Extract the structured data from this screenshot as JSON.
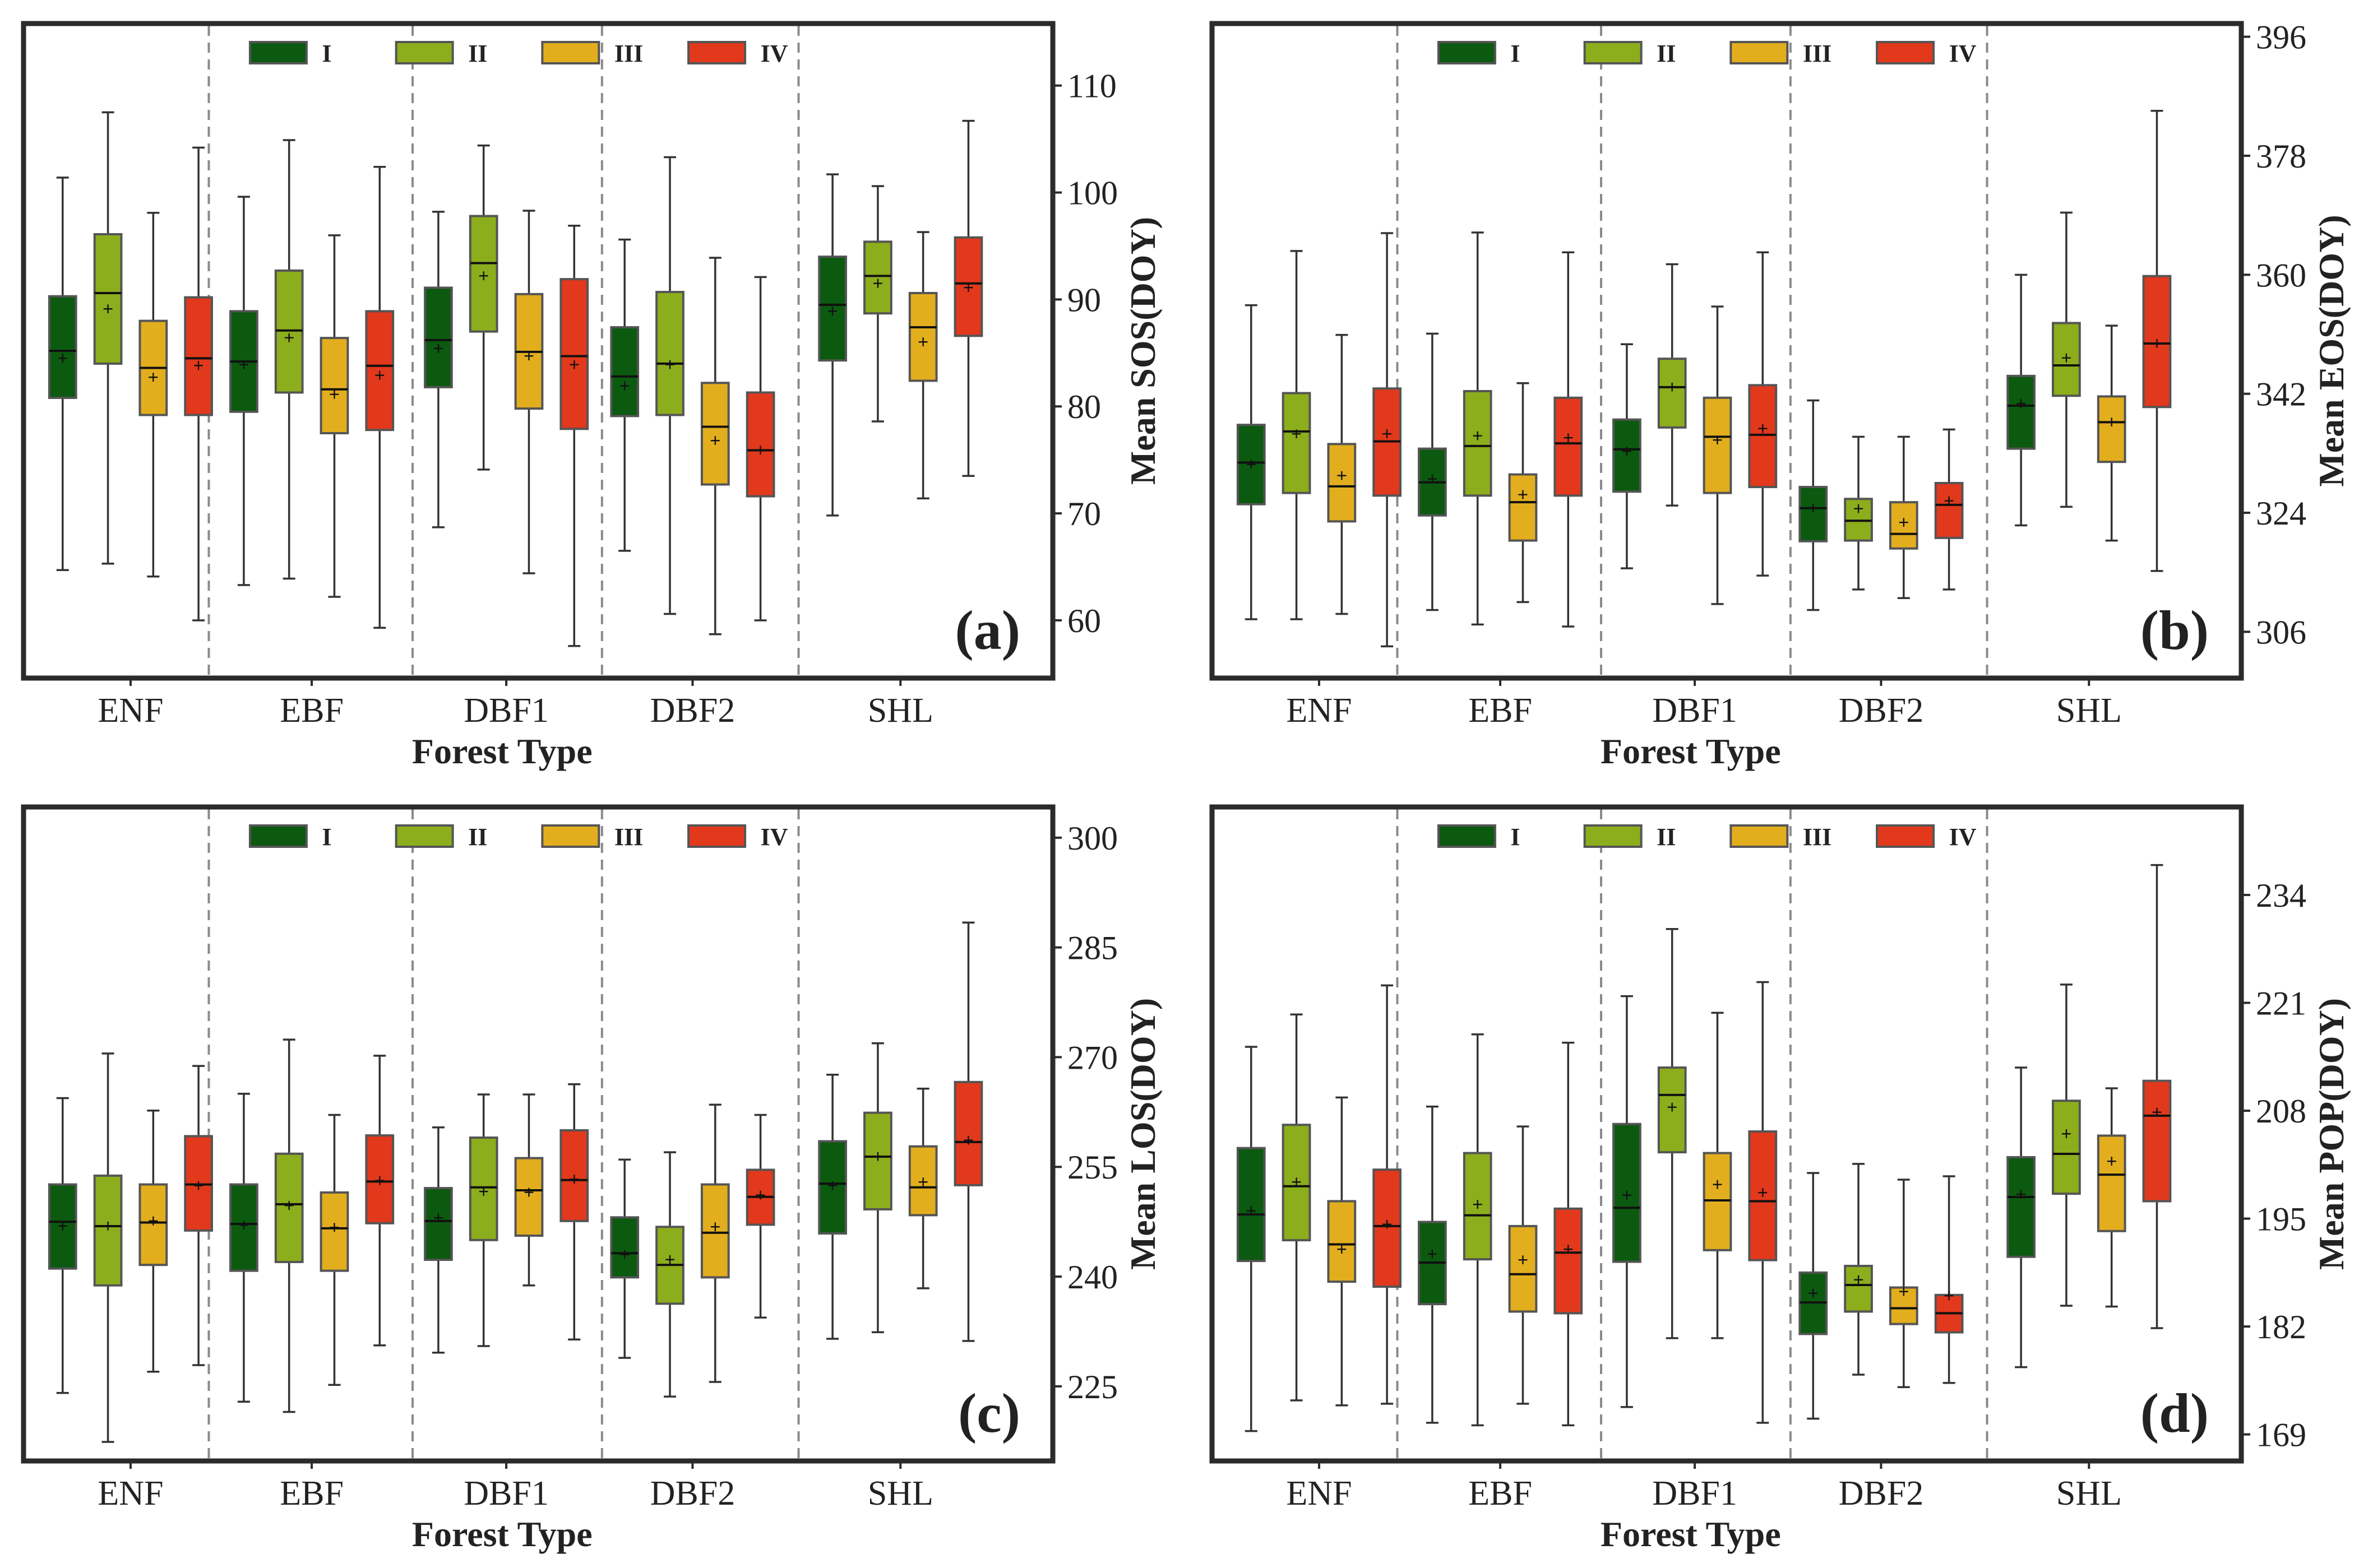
{
  "figure": {
    "group_colors": [
      "#0b5a10",
      "#8cae1c",
      "#e3ae1e",
      "#e2381c"
    ],
    "group_names": [
      "I",
      "II",
      "III",
      "IV"
    ],
    "mean_marker": "+"
  },
  "chart_data": [
    {
      "panel": "(a)",
      "type": "box",
      "xlabel": "Forest Type",
      "ylabel": "Mean SOS(DOY)",
      "ylim": [
        54.6,
        115.8
      ],
      "yticks": [
        60,
        70,
        80,
        90,
        100,
        110
      ],
      "categories": [
        "ENF",
        "EBF",
        "DBF1",
        "DBF2",
        "SHL"
      ],
      "series": [
        {
          "name": "I",
          "boxes": [
            {
              "min": 64.7,
              "q1": 80.8,
              "median": 85.2,
              "q3": 90.3,
              "max": 101.4,
              "mean": 84.5
            },
            {
              "min": 63.3,
              "q1": 79.5,
              "median": 84.2,
              "q3": 88.9,
              "max": 99.6,
              "mean": 83.9
            },
            {
              "min": 68.7,
              "q1": 81.8,
              "median": 86.2,
              "q3": 91.1,
              "max": 98.2,
              "mean": 85.4
            },
            {
              "min": 66.5,
              "q1": 79.1,
              "median": 82.8,
              "q3": 87.4,
              "max": 95.6,
              "mean": 81.9
            },
            {
              "min": 69.8,
              "q1": 84.3,
              "median": 89.5,
              "q3": 94.0,
              "max": 101.7,
              "mean": 88.9
            }
          ]
        },
        {
          "name": "II",
          "boxes": [
            {
              "min": 65.3,
              "q1": 84.0,
              "median": 90.6,
              "q3": 96.1,
              "max": 107.5,
              "mean": 89.1
            },
            {
              "min": 63.9,
              "q1": 81.3,
              "median": 87.1,
              "q3": 92.7,
              "max": 104.9,
              "mean": 86.4
            },
            {
              "min": 74.1,
              "q1": 87.0,
              "median": 93.4,
              "q3": 97.8,
              "max": 104.4,
              "mean": 92.2
            },
            {
              "min": 60.6,
              "q1": 79.2,
              "median": 84.0,
              "q3": 90.7,
              "max": 103.3,
              "mean": 83.9
            },
            {
              "min": 78.6,
              "q1": 88.7,
              "median": 92.2,
              "q3": 95.4,
              "max": 100.6,
              "mean": 91.5
            }
          ]
        },
        {
          "name": "III",
          "boxes": [
            {
              "min": 64.1,
              "q1": 79.2,
              "median": 83.6,
              "q3": 88.0,
              "max": 98.1,
              "mean": 82.7
            },
            {
              "min": 62.2,
              "q1": 77.5,
              "median": 81.6,
              "q3": 86.4,
              "max": 96.0,
              "mean": 81.1
            },
            {
              "min": 64.4,
              "q1": 79.8,
              "median": 85.1,
              "q3": 90.5,
              "max": 98.3,
              "mean": 84.7
            },
            {
              "min": 58.7,
              "q1": 72.7,
              "median": 78.1,
              "q3": 82.2,
              "max": 93.9,
              "mean": 76.8
            },
            {
              "min": 71.4,
              "q1": 82.4,
              "median": 87.4,
              "q3": 90.6,
              "max": 96.3,
              "mean": 86.0
            }
          ]
        },
        {
          "name": "IV",
          "boxes": [
            {
              "min": 60.0,
              "q1": 79.2,
              "median": 84.5,
              "q3": 90.2,
              "max": 104.2,
              "mean": 83.8
            },
            {
              "min": 59.3,
              "q1": 77.8,
              "median": 83.8,
              "q3": 88.9,
              "max": 102.4,
              "mean": 82.9
            },
            {
              "min": 57.6,
              "q1": 77.9,
              "median": 84.7,
              "q3": 91.9,
              "max": 96.9,
              "mean": 83.9
            },
            {
              "min": 60.0,
              "q1": 71.6,
              "median": 75.9,
              "q3": 81.3,
              "max": 92.1,
              "mean": 75.9
            },
            {
              "min": 73.5,
              "q1": 86.6,
              "median": 91.5,
              "q3": 95.8,
              "max": 106.7,
              "mean": 91.1
            }
          ]
        }
      ]
    },
    {
      "panel": "(b)",
      "type": "box",
      "xlabel": "Forest Type",
      "ylabel": "Mean EOS(DOY)",
      "ylim": [
        299.0,
        398.0
      ],
      "yticks": [
        306,
        324,
        342,
        360,
        378,
        396
      ],
      "categories": [
        "ENF",
        "EBF",
        "DBF1",
        "DBF2",
        "SHL"
      ],
      "series": [
        {
          "name": "I",
          "boxes": [
            {
              "min": 307.9,
              "q1": 325.3,
              "median": 331.6,
              "q3": 337.3,
              "max": 355.4,
              "mean": 331.3
            },
            {
              "min": 309.3,
              "q1": 323.6,
              "median": 328.6,
              "q3": 333.7,
              "max": 351.1,
              "mean": 329.1
            },
            {
              "min": 315.6,
              "q1": 327.2,
              "median": 333.6,
              "q3": 338.1,
              "max": 349.5,
              "mean": 333.3
            },
            {
              "min": 309.3,
              "q1": 319.7,
              "median": 324.7,
              "q3": 327.9,
              "max": 341.0,
              "mean": 324.7
            },
            {
              "min": 322.1,
              "q1": 333.7,
              "median": 340.2,
              "q3": 344.7,
              "max": 360.0,
              "mean": 340.5
            }
          ]
        },
        {
          "name": "II",
          "boxes": [
            {
              "min": 307.9,
              "q1": 327.0,
              "median": 336.3,
              "q3": 342.1,
              "max": 363.6,
              "mean": 335.9
            },
            {
              "min": 307.1,
              "q1": 326.6,
              "median": 334.1,
              "q3": 342.4,
              "max": 366.4,
              "mean": 335.6
            },
            {
              "min": 325.1,
              "q1": 336.9,
              "median": 343.0,
              "q3": 347.3,
              "max": 361.6,
              "mean": 343.0
            },
            {
              "min": 312.4,
              "q1": 319.8,
              "median": 322.8,
              "q3": 326.1,
              "max": 335.5,
              "mean": 324.6
            },
            {
              "min": 324.9,
              "q1": 341.7,
              "median": 346.3,
              "q3": 352.7,
              "max": 369.4,
              "mean": 347.4
            }
          ]
        },
        {
          "name": "III",
          "boxes": [
            {
              "min": 308.7,
              "q1": 322.7,
              "median": 328.0,
              "q3": 334.4,
              "max": 350.9,
              "mean": 329.6
            },
            {
              "min": 310.5,
              "q1": 319.8,
              "median": 325.6,
              "q3": 329.8,
              "max": 343.6,
              "mean": 326.7
            },
            {
              "min": 310.2,
              "q1": 327.0,
              "median": 335.5,
              "q3": 341.4,
              "max": 355.2,
              "mean": 335.0
            },
            {
              "min": 311.1,
              "q1": 318.6,
              "median": 320.8,
              "q3": 325.6,
              "max": 335.5,
              "mean": 322.5
            },
            {
              "min": 319.8,
              "q1": 331.7,
              "median": 337.7,
              "q3": 341.6,
              "max": 352.3,
              "mean": 337.7
            }
          ]
        },
        {
          "name": "IV",
          "boxes": [
            {
              "min": 303.8,
              "q1": 326.6,
              "median": 334.8,
              "q3": 342.8,
              "max": 366.3,
              "mean": 335.9
            },
            {
              "min": 306.8,
              "q1": 326.6,
              "median": 334.5,
              "q3": 341.4,
              "max": 363.4,
              "mean": 335.3
            },
            {
              "min": 314.5,
              "q1": 327.9,
              "median": 335.8,
              "q3": 343.3,
              "max": 363.4,
              "mean": 336.7
            },
            {
              "min": 312.4,
              "q1": 320.2,
              "median": 325.2,
              "q3": 328.5,
              "max": 336.6,
              "mean": 325.8
            },
            {
              "min": 315.2,
              "q1": 340.0,
              "median": 349.6,
              "q3": 359.8,
              "max": 384.8,
              "mean": 349.6
            }
          ]
        }
      ]
    },
    {
      "panel": "(c)",
      "type": "box",
      "xlabel": "Forest Type",
      "ylabel": "Mean LOS(DOY)",
      "ylim": [
        214.8,
        304.2
      ],
      "yticks": [
        225,
        240,
        255,
        270,
        285,
        300
      ],
      "categories": [
        "ENF",
        "EBF",
        "DBF1",
        "DBF2",
        "SHL"
      ],
      "series": [
        {
          "name": "I",
          "boxes": [
            {
              "min": 224.1,
              "q1": 241.1,
              "median": 247.5,
              "q3": 252.6,
              "max": 264.4,
              "mean": 246.9
            },
            {
              "min": 222.9,
              "q1": 240.8,
              "median": 247.2,
              "q3": 252.6,
              "max": 265.0,
              "mean": 247.0
            },
            {
              "min": 229.6,
              "q1": 242.3,
              "median": 247.6,
              "q3": 252.1,
              "max": 260.4,
              "mean": 248.0
            },
            {
              "min": 228.9,
              "q1": 239.9,
              "median": 243.2,
              "q3": 248.1,
              "max": 256.0,
              "mean": 243.0
            },
            {
              "min": 231.5,
              "q1": 245.9,
              "median": 252.7,
              "q3": 258.5,
              "max": 267.6,
              "mean": 252.4
            }
          ]
        },
        {
          "name": "II",
          "boxes": [
            {
              "min": 217.4,
              "q1": 238.8,
              "median": 246.9,
              "q3": 253.8,
              "max": 270.5,
              "mean": 246.9
            },
            {
              "min": 221.5,
              "q1": 242.0,
              "median": 249.9,
              "q3": 256.8,
              "max": 272.4,
              "mean": 249.7
            },
            {
              "min": 230.5,
              "q1": 245.0,
              "median": 252.2,
              "q3": 259.0,
              "max": 264.9,
              "mean": 251.6
            },
            {
              "min": 223.6,
              "q1": 236.3,
              "median": 241.6,
              "q3": 246.8,
              "max": 257.0,
              "mean": 242.3
            },
            {
              "min": 232.4,
              "q1": 249.2,
              "median": 256.4,
              "q3": 262.4,
              "max": 271.9,
              "mean": 256.4
            }
          ]
        },
        {
          "name": "III",
          "boxes": [
            {
              "min": 227.0,
              "q1": 241.6,
              "median": 247.4,
              "q3": 252.6,
              "max": 262.7,
              "mean": 247.6
            },
            {
              "min": 225.2,
              "q1": 240.8,
              "median": 246.6,
              "q3": 251.5,
              "max": 262.1,
              "mean": 246.7
            },
            {
              "min": 238.8,
              "q1": 245.6,
              "median": 251.8,
              "q3": 256.2,
              "max": 264.9,
              "mean": 251.5
            },
            {
              "min": 225.6,
              "q1": 239.9,
              "median": 246.0,
              "q3": 252.6,
              "max": 263.5,
              "mean": 246.8
            },
            {
              "min": 238.4,
              "q1": 248.4,
              "median": 252.2,
              "q3": 257.8,
              "max": 265.7,
              "mean": 252.9
            }
          ]
        },
        {
          "name": "IV",
          "boxes": [
            {
              "min": 227.9,
              "q1": 246.3,
              "median": 252.6,
              "q3": 259.2,
              "max": 268.8,
              "mean": 252.4
            },
            {
              "min": 230.6,
              "q1": 247.3,
              "median": 253.0,
              "q3": 259.3,
              "max": 270.2,
              "mean": 253.1
            },
            {
              "min": 231.4,
              "q1": 247.6,
              "median": 253.2,
              "q3": 260.0,
              "max": 266.3,
              "mean": 253.3
            },
            {
              "min": 234.4,
              "q1": 247.1,
              "median": 250.9,
              "q3": 254.6,
              "max": 262.1,
              "mean": 251.1
            },
            {
              "min": 231.2,
              "q1": 252.5,
              "median": 258.4,
              "q3": 266.6,
              "max": 288.4,
              "mean": 258.6
            }
          ]
        }
      ]
    },
    {
      "panel": "(d)",
      "type": "box",
      "xlabel": "Forest Type",
      "ylabel": "Mean POP(DOY)",
      "ylim": [
        165.8,
        244.6
      ],
      "yticks": [
        169,
        182,
        195,
        208,
        221,
        234
      ],
      "categories": [
        "ENF",
        "EBF",
        "DBF1",
        "DBF2",
        "SHL"
      ],
      "series": [
        {
          "name": "I",
          "boxes": [
            {
              "min": 169.4,
              "q1": 189.9,
              "median": 195.5,
              "q3": 203.5,
              "max": 215.7,
              "mean": 195.9
            },
            {
              "min": 170.4,
              "q1": 184.7,
              "median": 189.7,
              "q3": 194.6,
              "max": 208.5,
              "mean": 190.7
            },
            {
              "min": 172.3,
              "q1": 189.8,
              "median": 196.3,
              "q3": 206.4,
              "max": 221.8,
              "mean": 197.8
            },
            {
              "min": 170.9,
              "q1": 181.1,
              "median": 184.9,
              "q3": 188.5,
              "max": 200.5,
              "mean": 186.0
            },
            {
              "min": 177.1,
              "q1": 190.4,
              "median": 197.6,
              "q3": 202.4,
              "max": 213.2,
              "mean": 197.9
            }
          ]
        },
        {
          "name": "II",
          "boxes": [
            {
              "min": 173.1,
              "q1": 192.4,
              "median": 198.9,
              "q3": 206.3,
              "max": 219.6,
              "mean": 199.4
            },
            {
              "min": 170.1,
              "q1": 190.1,
              "median": 195.4,
              "q3": 202.9,
              "max": 217.2,
              "mean": 196.7
            },
            {
              "min": 180.6,
              "q1": 203.0,
              "median": 209.9,
              "q3": 213.2,
              "max": 229.9,
              "mean": 208.4
            },
            {
              "min": 176.2,
              "q1": 183.8,
              "median": 187.0,
              "q3": 189.3,
              "max": 201.6,
              "mean": 187.6
            },
            {
              "min": 184.5,
              "q1": 198.0,
              "median": 202.8,
              "q3": 209.2,
              "max": 223.2,
              "mean": 205.2
            }
          ]
        },
        {
          "name": "III",
          "boxes": [
            {
              "min": 172.5,
              "q1": 187.4,
              "median": 191.9,
              "q3": 197.1,
              "max": 209.6,
              "mean": 191.3
            },
            {
              "min": 172.7,
              "q1": 183.8,
              "median": 188.3,
              "q3": 194.1,
              "max": 206.1,
              "mean": 190.0
            },
            {
              "min": 180.6,
              "q1": 191.2,
              "median": 197.2,
              "q3": 202.9,
              "max": 219.8,
              "mean": 199.1
            },
            {
              "min": 174.7,
              "q1": 182.3,
              "median": 184.2,
              "q3": 186.7,
              "max": 199.7,
              "mean": 186.2
            },
            {
              "min": 184.4,
              "q1": 193.5,
              "median": 200.3,
              "q3": 205.0,
              "max": 210.7,
              "mean": 201.9
            }
          ]
        },
        {
          "name": "IV",
          "boxes": [
            {
              "min": 172.7,
              "q1": 186.8,
              "median": 194.1,
              "q3": 200.9,
              "max": 223.1,
              "mean": 194.3
            },
            {
              "min": 170.1,
              "q1": 183.6,
              "median": 190.9,
              "q3": 196.2,
              "max": 216.2,
              "mean": 191.3
            },
            {
              "min": 170.4,
              "q1": 190.0,
              "median": 197.1,
              "q3": 205.5,
              "max": 223.5,
              "mean": 198.1
            },
            {
              "min": 175.2,
              "q1": 181.3,
              "median": 183.6,
              "q3": 185.8,
              "max": 200.1,
              "mean": 185.7
            },
            {
              "min": 181.8,
              "q1": 197.1,
              "median": 207.4,
              "q3": 211.6,
              "max": 237.6,
              "mean": 207.8
            }
          ]
        }
      ]
    }
  ]
}
